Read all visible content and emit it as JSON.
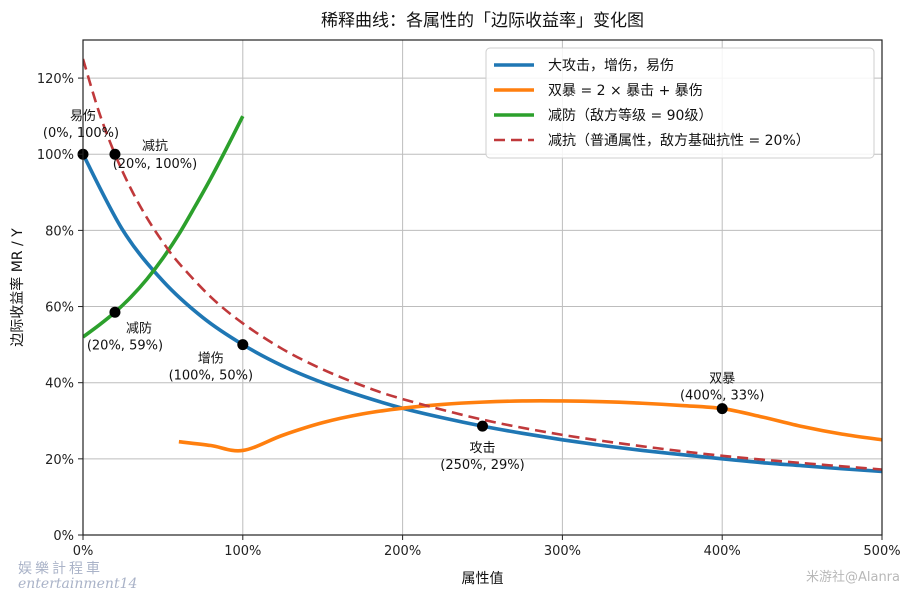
{
  "chart_data": {
    "type": "line",
    "title": "稀释曲线：各属性的「边际收益率」变化图",
    "xlabel": "属性值",
    "ylabel": "边际收益率 MR / Y",
    "xlim": [
      0,
      5
    ],
    "ylim": [
      0,
      1.3
    ],
    "grid": true,
    "legend_position": "top-right",
    "x_ticks": [
      {
        "value": 0,
        "label": "0%"
      },
      {
        "value": 1,
        "label": "100%"
      },
      {
        "value": 2,
        "label": "200%"
      },
      {
        "value": 3,
        "label": "300%"
      },
      {
        "value": 4,
        "label": "400%"
      },
      {
        "value": 5,
        "label": "500%"
      }
    ],
    "y_ticks": [
      {
        "value": 0,
        "label": "0%"
      },
      {
        "value": 0.2,
        "label": "20%"
      },
      {
        "value": 0.4,
        "label": "40%"
      },
      {
        "value": 0.6,
        "label": "60%"
      },
      {
        "value": 0.8,
        "label": "80%"
      },
      {
        "value": 1.0,
        "label": "100%"
      },
      {
        "value": 1.2,
        "label": "120%"
      }
    ],
    "series": [
      {
        "name": "大攻击，增伤，易伤",
        "color": "#1f77b4",
        "style": "solid",
        "x": [
          0,
          0.25,
          0.5,
          0.75,
          1,
          1.25,
          1.5,
          1.75,
          2,
          2.25,
          2.5,
          2.75,
          3,
          3.25,
          3.5,
          3.75,
          4,
          4.25,
          4.5,
          4.75,
          5
        ],
        "y": [
          1.0,
          0.8,
          0.667,
          0.571,
          0.5,
          0.444,
          0.4,
          0.364,
          0.333,
          0.308,
          0.286,
          0.267,
          0.25,
          0.235,
          0.222,
          0.211,
          0.2,
          0.19,
          0.182,
          0.174,
          0.167
        ]
      },
      {
        "name": "双暴 = 2 × 暴击 + 暴伤",
        "color": "#ff7f0e",
        "style": "solid",
        "x": [
          0.6,
          0.8,
          1.0,
          1.25,
          1.5,
          1.75,
          2.0,
          2.25,
          2.5,
          2.75,
          3.0,
          3.25,
          3.5,
          3.75,
          4.0,
          4.25,
          4.5,
          4.75,
          5.0
        ],
        "y": [
          0.245,
          0.235,
          0.222,
          0.262,
          0.295,
          0.318,
          0.333,
          0.343,
          0.349,
          0.352,
          0.352,
          0.35,
          0.346,
          0.34,
          0.332,
          0.31,
          0.285,
          0.265,
          0.25
        ]
      },
      {
        "name": "减防（敌方等级 = 90级）",
        "color": "#2ca02c",
        "style": "solid",
        "x": [
          0,
          0.1,
          0.2,
          0.3,
          0.4,
          0.5,
          0.6,
          0.7,
          0.8,
          0.9,
          1.0
        ],
        "y": [
          0.52,
          0.551,
          0.585,
          0.625,
          0.672,
          0.727,
          0.79,
          0.862,
          0.937,
          1.017,
          1.1
        ]
      },
      {
        "name": "减抗（普通属性，敌方基础抗性 = 20%）",
        "color": "#c0393b",
        "style": "dashed",
        "x": [
          0,
          0.1,
          0.2,
          0.3,
          0.4,
          0.5,
          0.6,
          0.8,
          1.0,
          1.25,
          1.5,
          1.75,
          2.0,
          2.5,
          3.0,
          3.5,
          4.0,
          4.5,
          5.0
        ],
        "y": [
          1.25,
          1.111,
          1.0,
          0.909,
          0.833,
          0.769,
          0.714,
          0.625,
          0.556,
          0.488,
          0.435,
          0.392,
          0.357,
          0.303,
          0.263,
          0.233,
          0.208,
          0.189,
          0.172
        ]
      }
    ],
    "annotations": [
      {
        "x": 0,
        "y": 1.0,
        "name": "易伤",
        "coord": "(0%, 100%)"
      },
      {
        "x": 0.2,
        "y": 1.0,
        "name": "减抗",
        "coord": "(20%, 100%)"
      },
      {
        "x": 0.2,
        "y": 0.585,
        "name": "减防",
        "coord": "(20%, 59%)"
      },
      {
        "x": 1.0,
        "y": 0.5,
        "name": "增伤",
        "coord": "(100%, 50%)"
      },
      {
        "x": 2.5,
        "y": 0.286,
        "name": "攻击",
        "coord": "(250%, 29%)"
      },
      {
        "x": 4.0,
        "y": 0.332,
        "name": "双暴",
        "coord": "(400%, 33%)"
      }
    ]
  },
  "watermarks": {
    "left_line1": "娱樂計程車",
    "left_line2": "entertainment14",
    "right": "米游社@Alanra"
  }
}
